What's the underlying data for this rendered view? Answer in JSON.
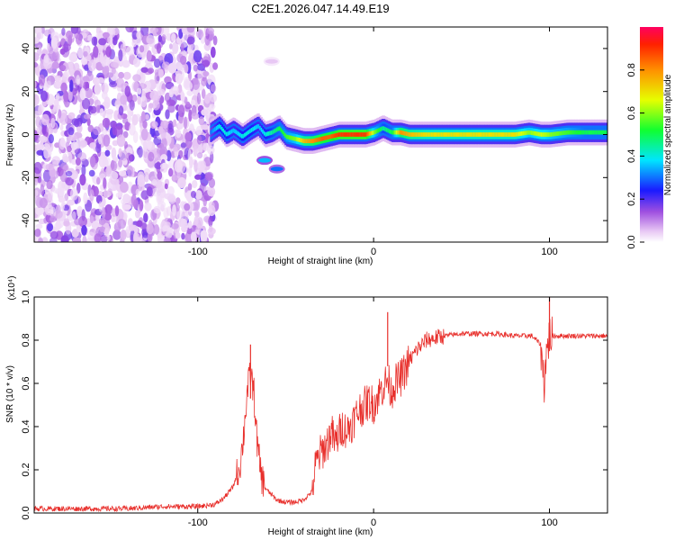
{
  "chart_data": [
    {
      "type": "heatmap",
      "title": "C2E1.2026.047.14.49.E19",
      "xlabel": "Height of straight line (km)",
      "ylabel": "Frequency (Hz)",
      "xlim": [
        -193,
        133
      ],
      "ylim": [
        -50,
        50
      ],
      "x_ticks": [
        -100,
        0,
        100
      ],
      "y_ticks": [
        -40,
        -20,
        0,
        20,
        40
      ],
      "colorbar": {
        "label": "Normalized spectral amplitude",
        "range": [
          0,
          1
        ],
        "ticks": [
          "0.0",
          "0.2",
          "0.4",
          "0.6",
          "0.8"
        ],
        "colors": [
          "#ffffff",
          "#d7a7f0",
          "#8a2be2",
          "#0000ff",
          "#00ffff",
          "#00ff00",
          "#ffff00",
          "#ff8000",
          "#ff0000"
        ]
      },
      "noise_region": {
        "x_range": [
          -193,
          -90
        ],
        "note_value": "speckled low amplitude"
      },
      "ridge": {
        "x": [
          -93,
          -88,
          -84,
          -80,
          -75,
          -70,
          -66,
          -62,
          -58,
          -54,
          -50,
          -45,
          -40,
          -35,
          -30,
          -25,
          -20,
          -15,
          -10,
          -5,
          0,
          5,
          10,
          15,
          20,
          30,
          40,
          50,
          60,
          70,
          80,
          88,
          95,
          100,
          110,
          120,
          133
        ],
        "y": [
          1,
          4,
          0,
          2,
          -1,
          2,
          4,
          0,
          1,
          3,
          -1,
          -2,
          -3,
          -3,
          -2,
          -1,
          0,
          0,
          0,
          0,
          1,
          3,
          1,
          1,
          0,
          0,
          0,
          0,
          0,
          0,
          0,
          1,
          0,
          0,
          1,
          1,
          1
        ],
        "amplitude": [
          0.3,
          0.4,
          0.4,
          0.35,
          0.4,
          0.4,
          0.35,
          0.4,
          0.45,
          0.5,
          0.55,
          0.6,
          0.75,
          0.8,
          0.85,
          0.85,
          0.9,
          0.9,
          0.9,
          0.9,
          0.6,
          0.45,
          0.5,
          0.8,
          0.75,
          0.7,
          0.7,
          0.7,
          0.7,
          0.7,
          0.7,
          0.6,
          0.65,
          0.6,
          0.55,
          0.5,
          0.5
        ]
      },
      "blobs": [
        {
          "x": -62,
          "y": -12,
          "amplitude": 0.35
        },
        {
          "x": -55,
          "y": -16,
          "amplitude": 0.3
        },
        {
          "x": -58,
          "y": 34,
          "amplitude": 0.05
        }
      ]
    },
    {
      "type": "line",
      "xlabel": "Height of straight line (km)",
      "ylabel": "SNR (10 * v/v)",
      "y_multiplier": "(x10⁴)",
      "xlim": [
        -193,
        133
      ],
      "ylim": [
        0,
        1.0
      ],
      "x_ticks": [
        -100,
        0,
        100
      ],
      "y_ticks": [
        "0.0",
        "0.2",
        "0.4",
        "0.6",
        "0.8",
        "1.0"
      ],
      "line_color": "#e8302c",
      "series": [
        {
          "name": "SNR",
          "x": [
            -193,
            -180,
            -160,
            -140,
            -120,
            -100,
            -90,
            -85,
            -80,
            -76,
            -74,
            -72,
            -70,
            -68,
            -66,
            -64,
            -62,
            -60,
            -55,
            -50,
            -45,
            -40,
            -35,
            -33,
            -30,
            -28,
            -26,
            -24,
            -22,
            -20,
            -18,
            -15,
            -12,
            -10,
            -8,
            -5,
            -2,
            0,
            3,
            5,
            8,
            10,
            12,
            15,
            18,
            20,
            25,
            30,
            35,
            40,
            50,
            60,
            70,
            80,
            90,
            95,
            97,
            98,
            100,
            105,
            110,
            120,
            133
          ],
          "y": [
            0.02,
            0.02,
            0.02,
            0.02,
            0.03,
            0.03,
            0.04,
            0.07,
            0.12,
            0.22,
            0.35,
            0.55,
            0.65,
            0.55,
            0.3,
            0.18,
            0.12,
            0.1,
            0.06,
            0.05,
            0.05,
            0.06,
            0.1,
            0.22,
            0.28,
            0.3,
            0.33,
            0.38,
            0.32,
            0.36,
            0.4,
            0.38,
            0.42,
            0.45,
            0.48,
            0.5,
            0.52,
            0.5,
            0.55,
            0.58,
            0.62,
            0.56,
            0.6,
            0.62,
            0.66,
            0.7,
            0.76,
            0.8,
            0.81,
            0.82,
            0.83,
            0.83,
            0.83,
            0.82,
            0.82,
            0.78,
            0.6,
            0.72,
            0.82,
            0.82,
            0.82,
            0.82,
            0.82
          ]
        }
      ],
      "annotations": [
        {
          "x": -70,
          "y": 0.78,
          "label": "spike"
        },
        {
          "x": 8,
          "y": 0.93,
          "label": "spike"
        },
        {
          "x": 100,
          "y": 1.0,
          "label": "spike"
        }
      ]
    }
  ]
}
